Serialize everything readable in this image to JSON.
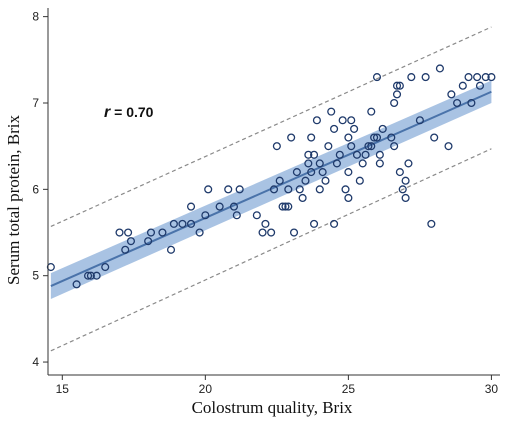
{
  "chart_data": {
    "type": "scatter",
    "title": "",
    "xlabel": "Colostrum quality, Brix",
    "ylabel": "Serum total protein, Brix",
    "xlim": [
      14.5,
      30.3
    ],
    "ylim": [
      3.85,
      8.1
    ],
    "x_ticks": [
      15,
      20,
      25,
      30
    ],
    "y_ticks": [
      4,
      5,
      6,
      7,
      8
    ],
    "grid": false,
    "legend": "none",
    "annotation": {
      "symbol": "r",
      "text": " = 0.70"
    },
    "colors": {
      "points": "#1f3a6b",
      "fit_line": "#4a73aa",
      "confidence_band": "#9ab8de",
      "prediction_lines": "#8a8a8a",
      "axis": "#333333"
    },
    "fit": {
      "x": [
        14.6,
        30.0
      ],
      "y": [
        4.88,
        7.13
      ],
      "ci_lower": [
        4.73,
        7.0
      ],
      "ci_upper": [
        5.03,
        7.26
      ],
      "pi_lower": [
        4.13,
        6.47
      ],
      "pi_upper": [
        5.57,
        7.88
      ]
    },
    "points": [
      [
        14.6,
        5.1
      ],
      [
        15.5,
        4.9
      ],
      [
        15.9,
        5.0
      ],
      [
        16.0,
        5.0
      ],
      [
        16.2,
        5.0
      ],
      [
        16.5,
        5.1
      ],
      [
        17.0,
        5.5
      ],
      [
        17.2,
        5.3
      ],
      [
        17.3,
        5.5
      ],
      [
        17.4,
        5.4
      ],
      [
        18.0,
        5.4
      ],
      [
        18.1,
        5.5
      ],
      [
        18.5,
        5.5
      ],
      [
        18.8,
        5.3
      ],
      [
        18.9,
        5.6
      ],
      [
        19.2,
        5.6
      ],
      [
        19.5,
        5.6
      ],
      [
        19.5,
        5.8
      ],
      [
        19.8,
        5.5
      ],
      [
        20.0,
        5.7
      ],
      [
        20.1,
        6.0
      ],
      [
        20.5,
        5.8
      ],
      [
        20.8,
        6.0
      ],
      [
        21.0,
        5.8
      ],
      [
        21.1,
        5.7
      ],
      [
        21.2,
        6.0
      ],
      [
        21.8,
        5.7
      ],
      [
        22.0,
        5.5
      ],
      [
        22.1,
        5.6
      ],
      [
        22.3,
        5.5
      ],
      [
        22.4,
        6.0
      ],
      [
        22.5,
        6.5
      ],
      [
        22.6,
        6.1
      ],
      [
        22.7,
        5.8
      ],
      [
        22.8,
        5.8
      ],
      [
        22.9,
        6.0
      ],
      [
        22.9,
        5.8
      ],
      [
        23.0,
        6.6
      ],
      [
        23.1,
        5.5
      ],
      [
        23.2,
        6.2
      ],
      [
        23.3,
        6.0
      ],
      [
        23.4,
        5.9
      ],
      [
        23.5,
        6.1
      ],
      [
        23.6,
        6.3
      ],
      [
        23.6,
        6.4
      ],
      [
        23.7,
        6.6
      ],
      [
        23.7,
        6.2
      ],
      [
        23.8,
        6.4
      ],
      [
        23.8,
        5.6
      ],
      [
        23.9,
        6.8
      ],
      [
        24.0,
        6.3
      ],
      [
        24.0,
        6.0
      ],
      [
        24.1,
        6.2
      ],
      [
        24.2,
        6.1
      ],
      [
        24.3,
        6.5
      ],
      [
        24.4,
        6.9
      ],
      [
        24.5,
        6.7
      ],
      [
        24.5,
        5.6
      ],
      [
        24.6,
        6.3
      ],
      [
        24.7,
        6.4
      ],
      [
        24.8,
        6.8
      ],
      [
        24.9,
        6.0
      ],
      [
        25.0,
        6.6
      ],
      [
        25.0,
        5.9
      ],
      [
        25.0,
        6.2
      ],
      [
        25.1,
        6.5
      ],
      [
        25.1,
        6.8
      ],
      [
        25.2,
        6.7
      ],
      [
        25.3,
        6.4
      ],
      [
        25.4,
        6.1
      ],
      [
        25.5,
        6.3
      ],
      [
        25.6,
        6.4
      ],
      [
        25.7,
        6.5
      ],
      [
        25.8,
        6.5
      ],
      [
        25.8,
        6.9
      ],
      [
        25.9,
        6.6
      ],
      [
        26.0,
        7.3
      ],
      [
        26.0,
        6.6
      ],
      [
        26.1,
        6.4
      ],
      [
        26.1,
        6.3
      ],
      [
        26.2,
        6.7
      ],
      [
        26.5,
        6.6
      ],
      [
        26.6,
        6.5
      ],
      [
        26.6,
        7.0
      ],
      [
        26.7,
        7.2
      ],
      [
        26.7,
        7.1
      ],
      [
        26.8,
        7.2
      ],
      [
        26.8,
        6.2
      ],
      [
        26.9,
        6.0
      ],
      [
        27.0,
        5.9
      ],
      [
        27.0,
        6.1
      ],
      [
        27.1,
        6.3
      ],
      [
        27.2,
        7.3
      ],
      [
        27.5,
        6.8
      ],
      [
        27.7,
        7.3
      ],
      [
        27.9,
        5.6
      ],
      [
        28.0,
        6.6
      ],
      [
        28.2,
        7.4
      ],
      [
        28.5,
        6.5
      ],
      [
        28.6,
        7.1
      ],
      [
        28.8,
        7.0
      ],
      [
        29.0,
        7.2
      ],
      [
        29.2,
        7.3
      ],
      [
        29.3,
        7.0
      ],
      [
        29.5,
        7.3
      ],
      [
        29.6,
        7.2
      ],
      [
        29.8,
        7.3
      ],
      [
        30.0,
        7.3
      ]
    ]
  }
}
